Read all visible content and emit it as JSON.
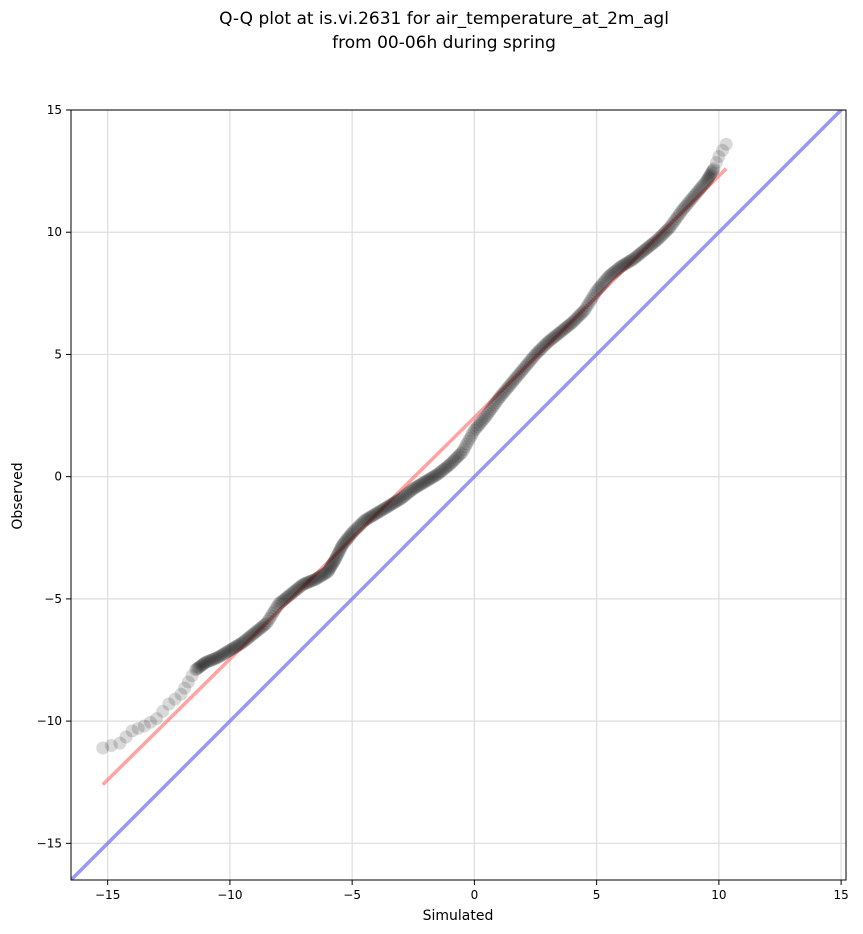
{
  "chart_data": {
    "type": "scatter",
    "title_lines": [
      "Q-Q plot at is.vi.2631 for air_temperature_at_2m_agl",
      "from 00-06h during spring"
    ],
    "xlabel": "Simulated",
    "ylabel": "Observed",
    "xlim": [
      -16.5,
      15.2
    ],
    "ylim": [
      -16.5,
      15.0
    ],
    "xticks": [
      -15,
      -10,
      -5,
      0,
      5,
      10,
      15
    ],
    "yticks": [
      -15,
      -10,
      -5,
      0,
      5,
      10,
      15
    ],
    "xtick_labels": [
      "−15",
      "−10",
      "−5",
      "0",
      "5",
      "10",
      "15"
    ],
    "ytick_labels": [
      "−15",
      "−10",
      "−5",
      "0",
      "5",
      "10",
      "15"
    ],
    "grid": true,
    "colors": {
      "points": "#000000",
      "fit_line": "#ff6666",
      "identity_line": "#7777ee",
      "grid": "#dddddd"
    },
    "quantile_curve": [
      [
        -15.2,
        -11.1
      ],
      [
        -14.5,
        -10.9
      ],
      [
        -14.0,
        -10.4
      ],
      [
        -13.5,
        -10.2
      ],
      [
        -13.0,
        -9.9
      ],
      [
        -12.5,
        -9.3
      ],
      [
        -12.0,
        -8.9
      ],
      [
        -11.7,
        -8.4
      ],
      [
        -11.4,
        -7.9
      ],
      [
        -11.0,
        -7.6
      ],
      [
        -10.5,
        -7.4
      ],
      [
        -10.0,
        -7.1
      ],
      [
        -9.5,
        -6.8
      ],
      [
        -9.0,
        -6.4
      ],
      [
        -8.5,
        -6.0
      ],
      [
        -8.0,
        -5.2
      ],
      [
        -7.5,
        -4.8
      ],
      [
        -7.0,
        -4.4
      ],
      [
        -6.5,
        -4.2
      ],
      [
        -6.0,
        -3.9
      ],
      [
        -5.7,
        -3.4
      ],
      [
        -5.4,
        -2.8
      ],
      [
        -5.0,
        -2.3
      ],
      [
        -4.5,
        -1.8
      ],
      [
        -4.0,
        -1.5
      ],
      [
        -3.5,
        -1.2
      ],
      [
        -3.0,
        -0.9
      ],
      [
        -2.5,
        -0.5
      ],
      [
        -2.0,
        -0.2
      ],
      [
        -1.5,
        0.1
      ],
      [
        -1.0,
        0.5
      ],
      [
        -0.5,
        1.0
      ],
      [
        0.0,
        1.9
      ],
      [
        0.5,
        2.5
      ],
      [
        1.0,
        3.2
      ],
      [
        1.5,
        3.8
      ],
      [
        2.0,
        4.4
      ],
      [
        2.5,
        5.0
      ],
      [
        3.0,
        5.5
      ],
      [
        3.5,
        5.9
      ],
      [
        4.0,
        6.3
      ],
      [
        4.5,
        6.8
      ],
      [
        5.0,
        7.6
      ],
      [
        5.5,
        8.2
      ],
      [
        6.0,
        8.6
      ],
      [
        6.5,
        8.9
      ],
      [
        7.0,
        9.3
      ],
      [
        7.5,
        9.7
      ],
      [
        8.0,
        10.2
      ],
      [
        8.5,
        10.9
      ],
      [
        9.0,
        11.5
      ],
      [
        9.5,
        12.1
      ],
      [
        9.8,
        12.6
      ],
      [
        10.0,
        13.1
      ],
      [
        10.3,
        13.6
      ]
    ],
    "fit_line": {
      "x": [
        -15.2,
        10.3
      ],
      "y": [
        -12.6,
        12.6
      ]
    },
    "identity_line": {
      "x": [
        -16.5,
        15.2
      ],
      "y": [
        -16.5,
        15.2
      ]
    }
  }
}
